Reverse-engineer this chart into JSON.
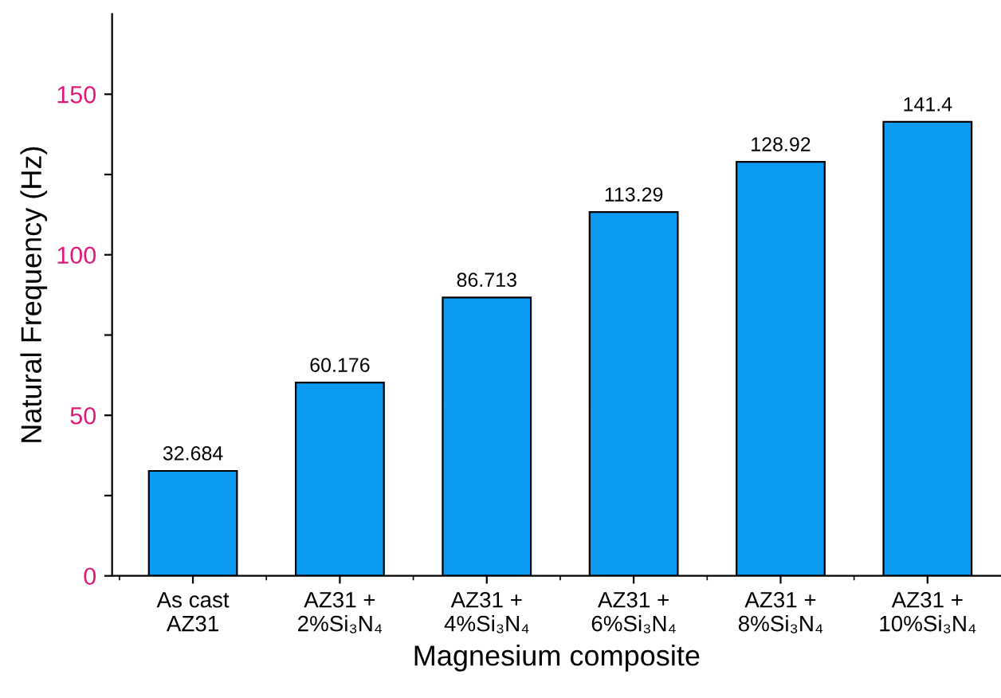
{
  "chart_data": {
    "type": "bar",
    "xlabel": "Magnesium composite",
    "ylabel": "Natural Frequency (Hz)",
    "categories": [
      "As cast\nAZ31",
      "AZ31 +\n2%Si₃N₄",
      "AZ31 +\n4%Si₃N₄",
      "AZ31 +\n6%Si₃N₄",
      "AZ31 +\n8%Si₃N₄",
      "AZ31 +\n10%Si₃N₄"
    ],
    "values": [
      32.684,
      60.176,
      86.713,
      113.29,
      128.92,
      141.4
    ],
    "value_labels": [
      "32.684",
      "60.176",
      "86.713",
      "113.29",
      "128.92",
      "141.4"
    ],
    "color": "#0d9bf2",
    "ylim": [
      0,
      175
    ],
    "yticks": [
      0,
      {
        "value": 25,
        "label": null
      },
      50,
      {
        "value": 75,
        "label": null
      },
      100,
      {
        "value": 125,
        "label": null
      },
      150
    ],
    "grid": false,
    "legend": false
  }
}
